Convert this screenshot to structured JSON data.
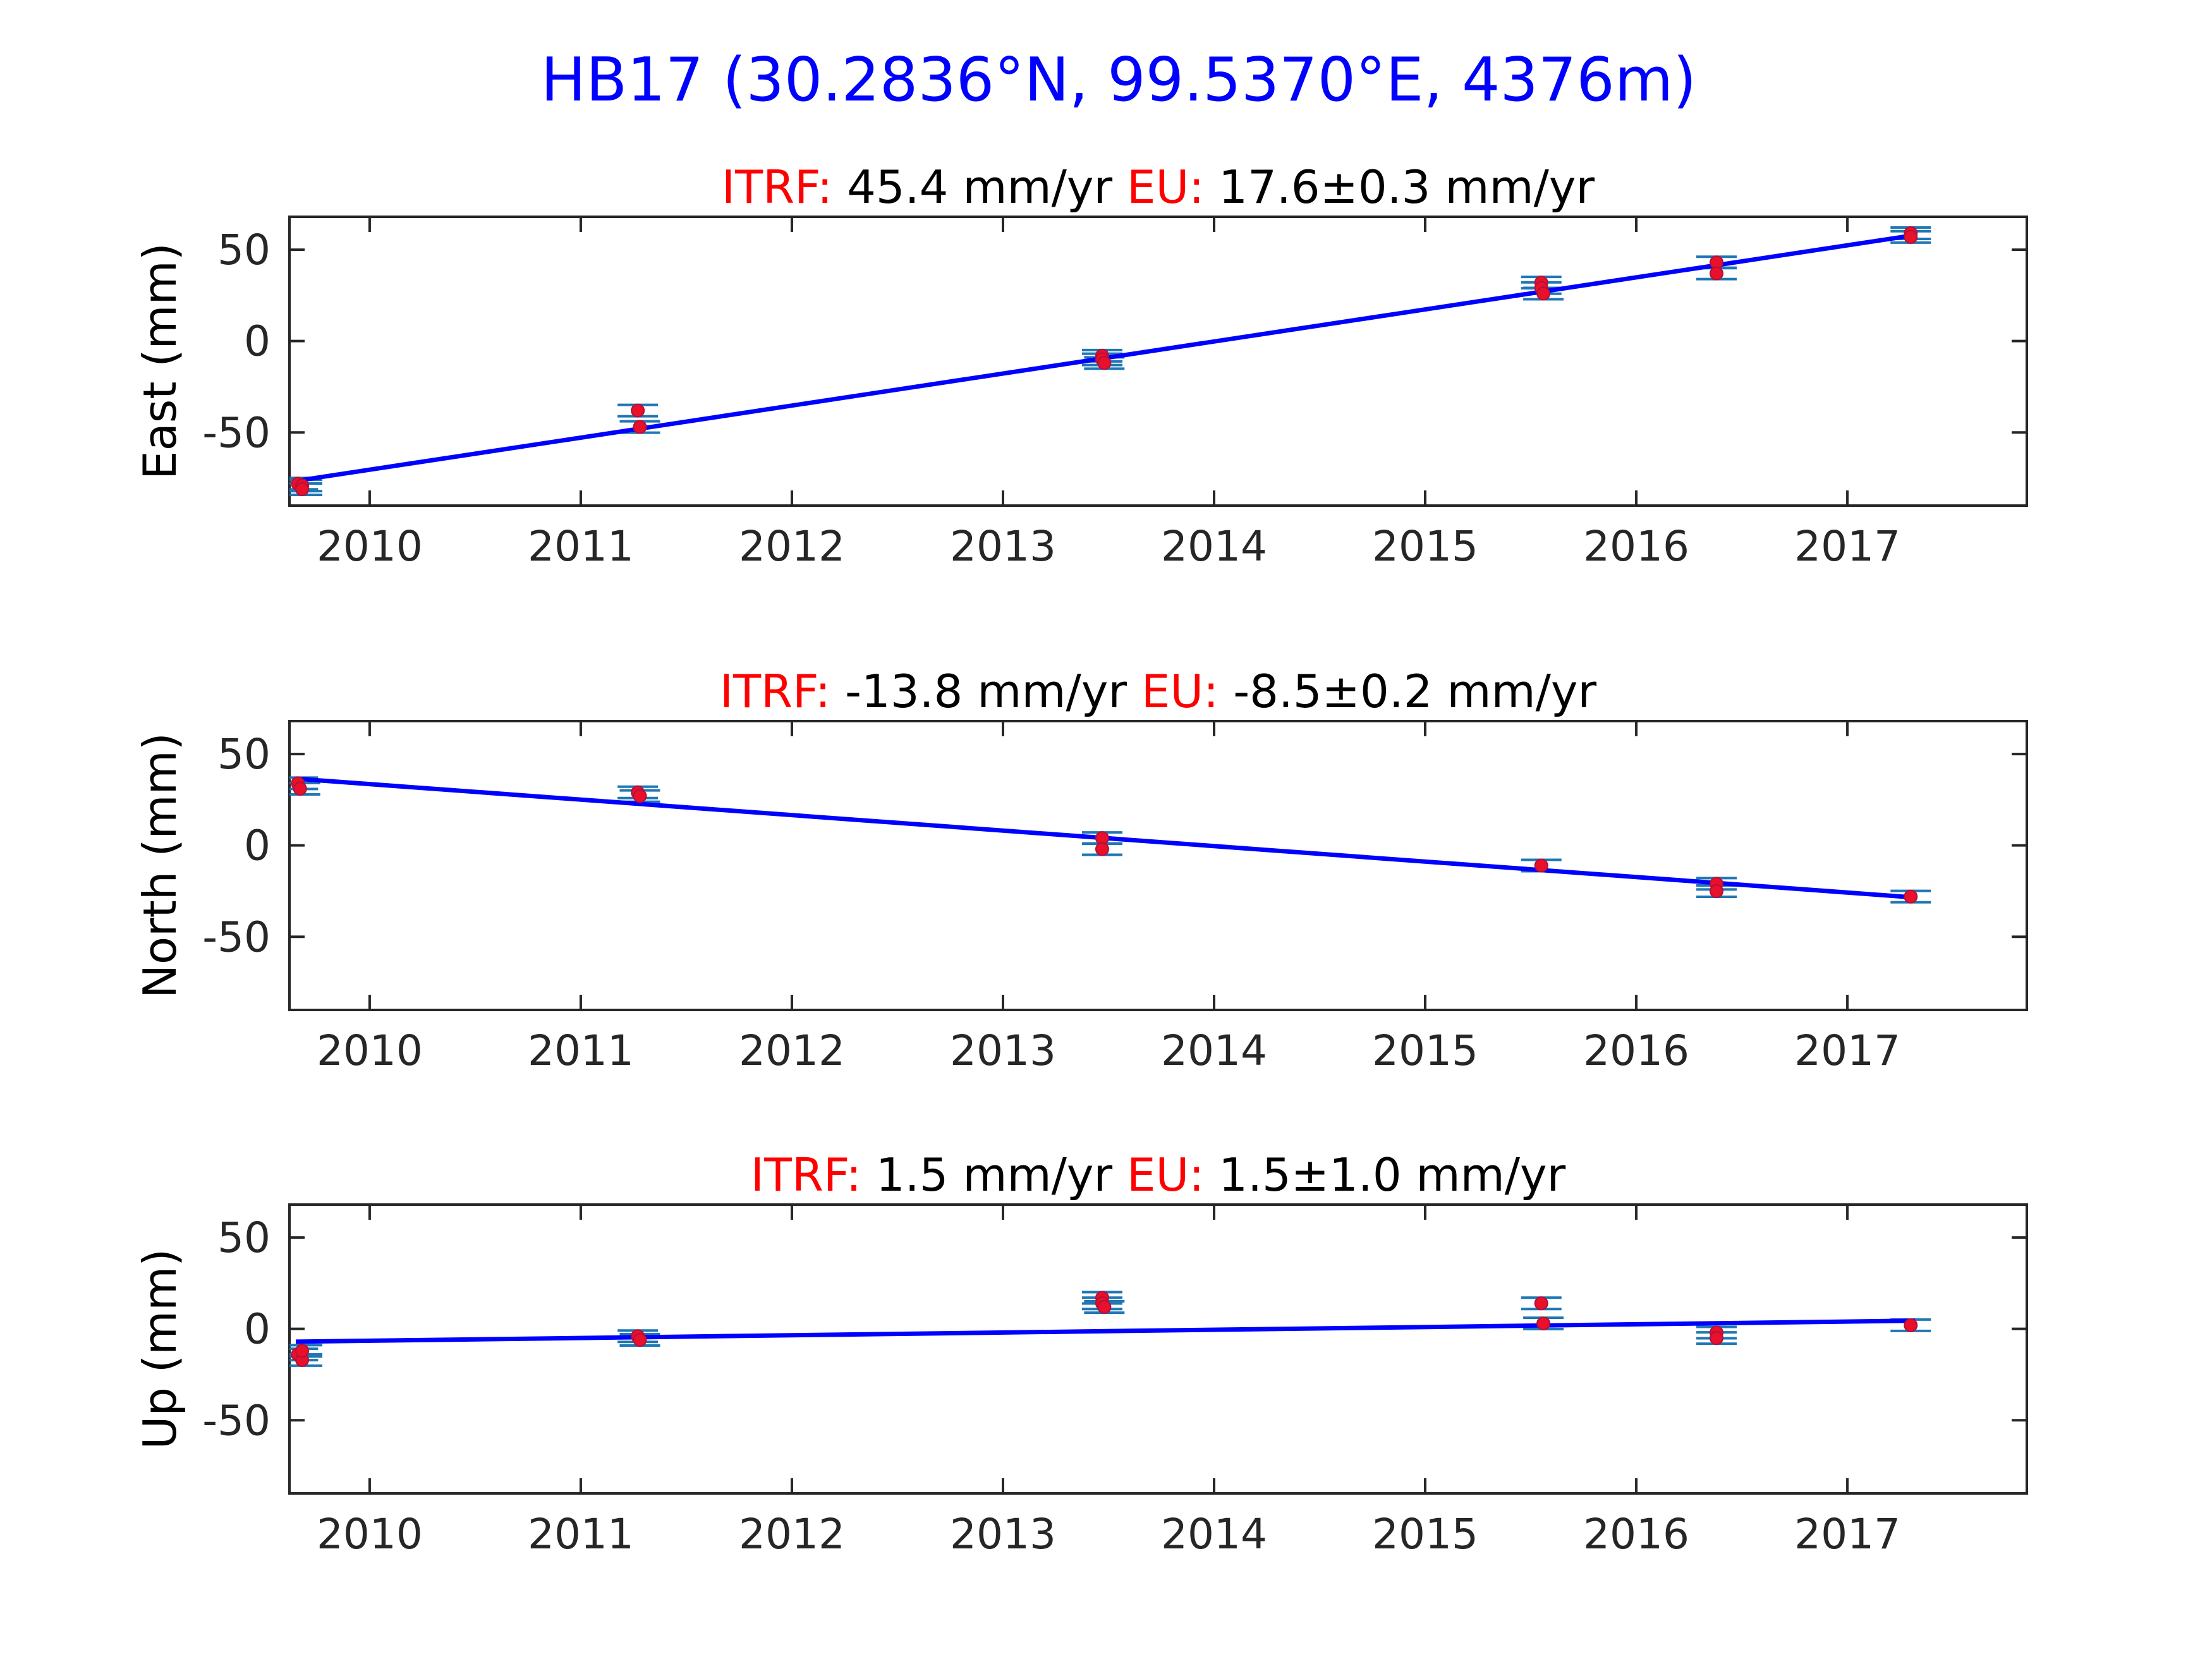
{
  "figure_title": "HB17 (30.2836°N, 99.5370°E, 4376m)",
  "colors": {
    "title": "#0000ff",
    "label_red": "#ff0000",
    "text": "#000000",
    "axis": "#262626",
    "fit_line": "#0000ff",
    "errorbar": "#1f77b4",
    "point": "#e8102a"
  },
  "chart_data": [
    {
      "type": "scatter",
      "component": "east",
      "ylabel": "East (mm)",
      "rate_text": {
        "itrf_label": "ITRF:",
        "itrf_value": "45.4 mm/yr",
        "eu_label": "EU:",
        "eu_value": "17.6±0.3 mm/yr"
      },
      "xlim": [
        2009.62,
        2017.85
      ],
      "ylim": [
        -90,
        68
      ],
      "xticks": [
        2010,
        2011,
        2012,
        2013,
        2014,
        2015,
        2016,
        2017
      ],
      "yticks": [
        50,
        0,
        -50
      ],
      "grid": false,
      "fit": {
        "x": [
          2009.65,
          2017.32
        ],
        "y": [
          -76.5,
          58
        ]
      },
      "points": [
        {
          "x": 2009.66,
          "y": -78
        },
        {
          "x": 2009.68,
          "y": -79
        },
        {
          "x": 2009.68,
          "y": -81
        },
        {
          "x": 2011.27,
          "y": -38
        },
        {
          "x": 2011.28,
          "y": -47
        },
        {
          "x": 2013.47,
          "y": -8
        },
        {
          "x": 2013.47,
          "y": -10
        },
        {
          "x": 2013.48,
          "y": -12
        },
        {
          "x": 2015.55,
          "y": 32
        },
        {
          "x": 2015.55,
          "y": 29
        },
        {
          "x": 2015.56,
          "y": 26
        },
        {
          "x": 2016.38,
          "y": 43
        },
        {
          "x": 2016.38,
          "y": 37
        },
        {
          "x": 2017.3,
          "y": 59
        },
        {
          "x": 2017.3,
          "y": 57
        }
      ]
    },
    {
      "type": "scatter",
      "component": "north",
      "ylabel": "North (mm)",
      "rate_text": {
        "itrf_label": "ITRF:",
        "itrf_value": "-13.8 mm/yr",
        "eu_label": "EU:",
        "eu_value": "-8.5±0.2 mm/yr"
      },
      "xlim": [
        2009.62,
        2017.85
      ],
      "ylim": [
        -90,
        68
      ],
      "xticks": [
        2010,
        2011,
        2012,
        2013,
        2014,
        2015,
        2016,
        2017
      ],
      "yticks": [
        50,
        0,
        -50
      ],
      "grid": false,
      "fit": {
        "x": [
          2009.65,
          2017.32
        ],
        "y": [
          36.5,
          -28.5
        ]
      },
      "points": [
        {
          "x": 2009.66,
          "y": 34
        },
        {
          "x": 2009.67,
          "y": 31
        },
        {
          "x": 2011.27,
          "y": 29
        },
        {
          "x": 2011.28,
          "y": 27
        },
        {
          "x": 2013.47,
          "y": 4
        },
        {
          "x": 2013.47,
          "y": -2
        },
        {
          "x": 2015.55,
          "y": -11
        },
        {
          "x": 2016.38,
          "y": -21
        },
        {
          "x": 2016.38,
          "y": -25
        },
        {
          "x": 2017.3,
          "y": -28
        }
      ]
    },
    {
      "type": "scatter",
      "component": "up",
      "ylabel": "Up (mm)",
      "rate_text": {
        "itrf_label": "ITRF:",
        "itrf_value": "1.5 mm/yr",
        "eu_label": "EU:",
        "eu_value": "1.5±1.0 mm/yr"
      },
      "xlim": [
        2009.62,
        2017.85
      ],
      "ylim": [
        -90,
        68
      ],
      "xticks": [
        2010,
        2011,
        2012,
        2013,
        2014,
        2015,
        2016,
        2017
      ],
      "yticks": [
        50,
        0,
        -50
      ],
      "grid": false,
      "fit": {
        "x": [
          2009.65,
          2017.32
        ],
        "y": [
          -7,
          4.5
        ]
      },
      "points": [
        {
          "x": 2009.66,
          "y": -14
        },
        {
          "x": 2009.68,
          "y": -17
        },
        {
          "x": 2009.68,
          "y": -12
        },
        {
          "x": 2011.27,
          "y": -4
        },
        {
          "x": 2011.28,
          "y": -6
        },
        {
          "x": 2013.47,
          "y": 17
        },
        {
          "x": 2013.47,
          "y": 14
        },
        {
          "x": 2013.48,
          "y": 12
        },
        {
          "x": 2015.55,
          "y": 14
        },
        {
          "x": 2015.56,
          "y": 3
        },
        {
          "x": 2016.38,
          "y": -2
        },
        {
          "x": 2016.38,
          "y": -5
        },
        {
          "x": 2017.3,
          "y": 2
        }
      ]
    }
  ]
}
